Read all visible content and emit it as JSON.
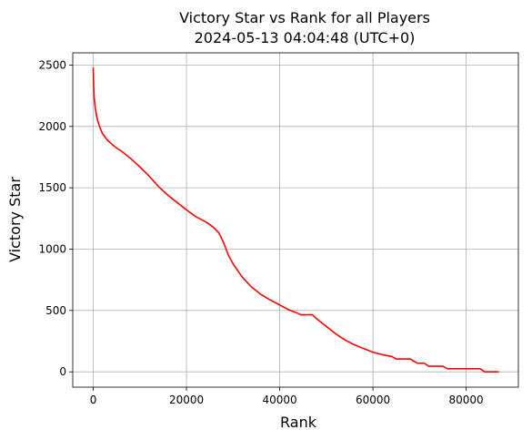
{
  "chart_data": {
    "type": "line",
    "title_lines": [
      "Victory Star vs Rank for all Players",
      "2024-05-13 04:04:48 (UTC+0)"
    ],
    "xlabel": "Rank",
    "ylabel": "Victory Star",
    "xlim": [
      -4400,
      91200
    ],
    "ylim": [
      -125,
      2600
    ],
    "xticks": [
      0,
      20000,
      40000,
      60000,
      80000
    ],
    "xtick_labels": [
      "0",
      "20000",
      "40000",
      "60000",
      "80000"
    ],
    "yticks": [
      0,
      500,
      1000,
      1500,
      2000,
      2500
    ],
    "ytick_labels": [
      "0",
      "500",
      "1000",
      "1500",
      "2000",
      "2500"
    ],
    "grid": true,
    "series": [
      {
        "color": "#ff0000",
        "x": [
          0,
          50,
          100,
          200,
          400,
          700,
          1000,
          1500,
          2000,
          3000,
          4000,
          5000,
          6000,
          8000,
          10000,
          12000,
          14000,
          16000,
          18000,
          20000,
          22000,
          24000,
          25000,
          26000,
          26500,
          27000,
          27500,
          28000,
          29000,
          30000,
          32000,
          34000,
          36000,
          38000,
          40000,
          42000,
          43000,
          44000,
          44500,
          45000,
          46000,
          47000,
          48000,
          50000,
          52000,
          54000,
          56000,
          58000,
          60000,
          62000,
          64000,
          65000,
          67000,
          68000,
          69500,
          70000,
          71000,
          72000,
          72500,
          73000,
          74000,
          75000,
          76000,
          77000,
          80000,
          83000,
          84000,
          86000,
          87000
        ],
        "y": [
          2480,
          2380,
          2300,
          2230,
          2160,
          2090,
          2040,
          1985,
          1940,
          1890,
          1855,
          1825,
          1800,
          1740,
          1670,
          1595,
          1510,
          1440,
          1380,
          1320,
          1265,
          1225,
          1200,
          1170,
          1150,
          1130,
          1090,
          1050,
          950,
          880,
          770,
          690,
          630,
          585,
          545,
          505,
          490,
          475,
          465,
          465,
          465,
          465,
          430,
          370,
          310,
          260,
          220,
          190,
          160,
          140,
          125,
          105,
          105,
          105,
          70,
          70,
          70,
          45,
          45,
          45,
          45,
          45,
          25,
          25,
          25,
          25,
          0,
          0,
          0
        ]
      }
    ]
  }
}
